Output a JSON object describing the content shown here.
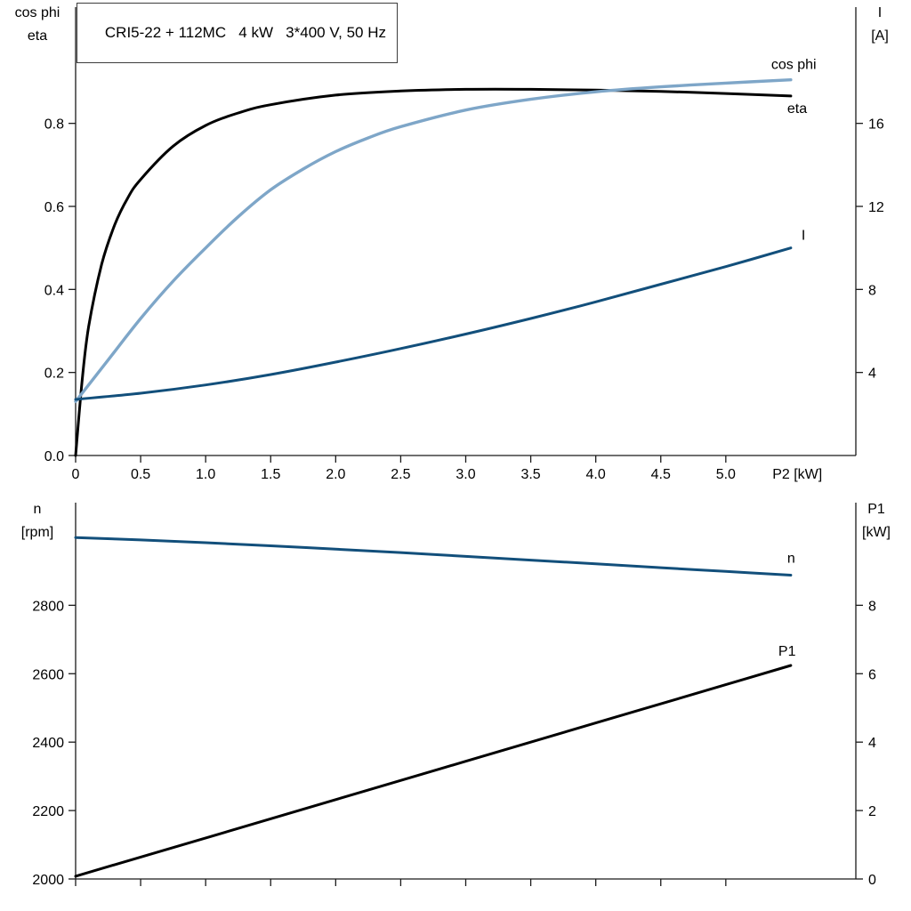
{
  "title": "CRI5-22 + 112MC   4 kW   3*400 V, 50 Hz",
  "colors": {
    "axis": "#1a1a1a",
    "text": "#000000",
    "background": "#ffffff",
    "light_blue": "#7ea6c8",
    "dark_blue": "#124f7b",
    "black": "#000000"
  },
  "chart_data": [
    {
      "id": "motor-performance",
      "type": "line",
      "grid": false,
      "x_axis": {
        "label": "P2 [kW]",
        "label_x": 5.55,
        "range": [
          0,
          6
        ],
        "tick_values": [
          0,
          0.5,
          1,
          1.5,
          2,
          2.5,
          3,
          3.5,
          4,
          4.5,
          5
        ],
        "tick_labels": [
          "0",
          "0.5",
          "1.0",
          "1.5",
          "2.0",
          "2.5",
          "3.0",
          "3.5",
          "4.0",
          "4.5",
          "5.0"
        ]
      },
      "left_axis": {
        "title_lines": [
          "cos phi",
          "eta"
        ],
        "range": [
          0,
          1.08
        ],
        "tick_values": [
          0,
          0.2,
          0.4,
          0.6,
          0.8
        ],
        "tick_labels": [
          "0.0",
          "0.2",
          "0.4",
          "0.6",
          "0.8"
        ]
      },
      "right_axis": {
        "title_lines": [
          "I",
          "[A]"
        ],
        "range": [
          0,
          21.6
        ],
        "tick_values": [
          4,
          8,
          12,
          16
        ],
        "tick_labels": [
          "4",
          "8",
          "12",
          "16"
        ]
      },
      "series": [
        {
          "name": "eta",
          "axis": "left",
          "color": "#000000",
          "width": 3,
          "label_dx": -4,
          "label_dy": 19,
          "x": [
            0,
            0.05,
            0.1,
            0.2,
            0.3,
            0.4,
            0.5,
            0.75,
            1.0,
            1.25,
            1.5,
            2.0,
            2.5,
            3.0,
            3.5,
            4.0,
            4.5,
            5.0,
            5.5
          ],
          "y": [
            0,
            0.18,
            0.31,
            0.46,
            0.555,
            0.62,
            0.665,
            0.745,
            0.795,
            0.825,
            0.845,
            0.868,
            0.878,
            0.882,
            0.882,
            0.88,
            0.877,
            0.872,
            0.866
          ]
        },
        {
          "name": "cos phi",
          "axis": "left",
          "color": "#7ea6c8",
          "width": 3.4,
          "label_dx": -22,
          "label_dy": -12,
          "x": [
            0,
            0.25,
            0.5,
            0.75,
            1.0,
            1.25,
            1.5,
            1.75,
            2.0,
            2.25,
            2.5,
            3.0,
            3.5,
            4.0,
            4.5,
            5.0,
            5.5
          ],
          "y": [
            0.13,
            0.23,
            0.33,
            0.42,
            0.5,
            0.575,
            0.64,
            0.69,
            0.732,
            0.765,
            0.792,
            0.832,
            0.858,
            0.876,
            0.888,
            0.897,
            0.905
          ]
        },
        {
          "name": "I",
          "axis": "right",
          "color": "#124f7b",
          "width": 3,
          "label_dx": 12,
          "label_dy": -9,
          "x": [
            0,
            0.5,
            1.0,
            1.5,
            2.0,
            2.5,
            3.0,
            3.5,
            4.0,
            4.5,
            5.0,
            5.5
          ],
          "y": [
            2.7,
            3.0,
            3.4,
            3.9,
            4.5,
            5.15,
            5.85,
            6.6,
            7.4,
            8.25,
            9.1,
            10.0
          ]
        }
      ]
    },
    {
      "id": "speed-power",
      "type": "line",
      "grid": false,
      "x_axis": {
        "label": null,
        "label_x": null,
        "range": [
          0,
          6
        ],
        "tick_values": [
          0,
          0.5,
          1,
          1.5,
          2,
          2.5,
          3,
          3.5,
          4,
          4.5,
          5
        ],
        "tick_labels": null
      },
      "left_axis": {
        "title_lines": [
          "n",
          "[rpm]"
        ],
        "range": [
          2000,
          3100
        ],
        "tick_values": [
          2000,
          2200,
          2400,
          2600,
          2800
        ],
        "tick_labels": [
          "2000",
          "2200",
          "2400",
          "2600",
          "2800"
        ]
      },
      "right_axis": {
        "title_lines": [
          "P1",
          "[kW]"
        ],
        "range": [
          0,
          11
        ],
        "tick_values": [
          0,
          2,
          4,
          6,
          8
        ],
        "tick_labels": [
          "0",
          "2",
          "4",
          "6",
          "8"
        ]
      },
      "series": [
        {
          "name": "n",
          "axis": "left",
          "color": "#124f7b",
          "width": 3,
          "label_dx": -4,
          "label_dy": -14,
          "x": [
            0,
            0.5,
            1,
            1.5,
            2,
            2.5,
            3,
            3.5,
            4,
            4.5,
            5,
            5.5
          ],
          "y": [
            2998,
            2991,
            2983,
            2974,
            2964,
            2954,
            2943,
            2932,
            2921,
            2910,
            2899,
            2888
          ]
        },
        {
          "name": "P1",
          "axis": "right",
          "color": "#000000",
          "width": 3,
          "label_dx": -14,
          "label_dy": -11,
          "x": [
            0,
            1,
            2,
            3,
            4,
            5,
            5.5
          ],
          "y": [
            0.08,
            1.2,
            2.32,
            3.44,
            4.56,
            5.68,
            6.24
          ]
        }
      ]
    }
  ]
}
